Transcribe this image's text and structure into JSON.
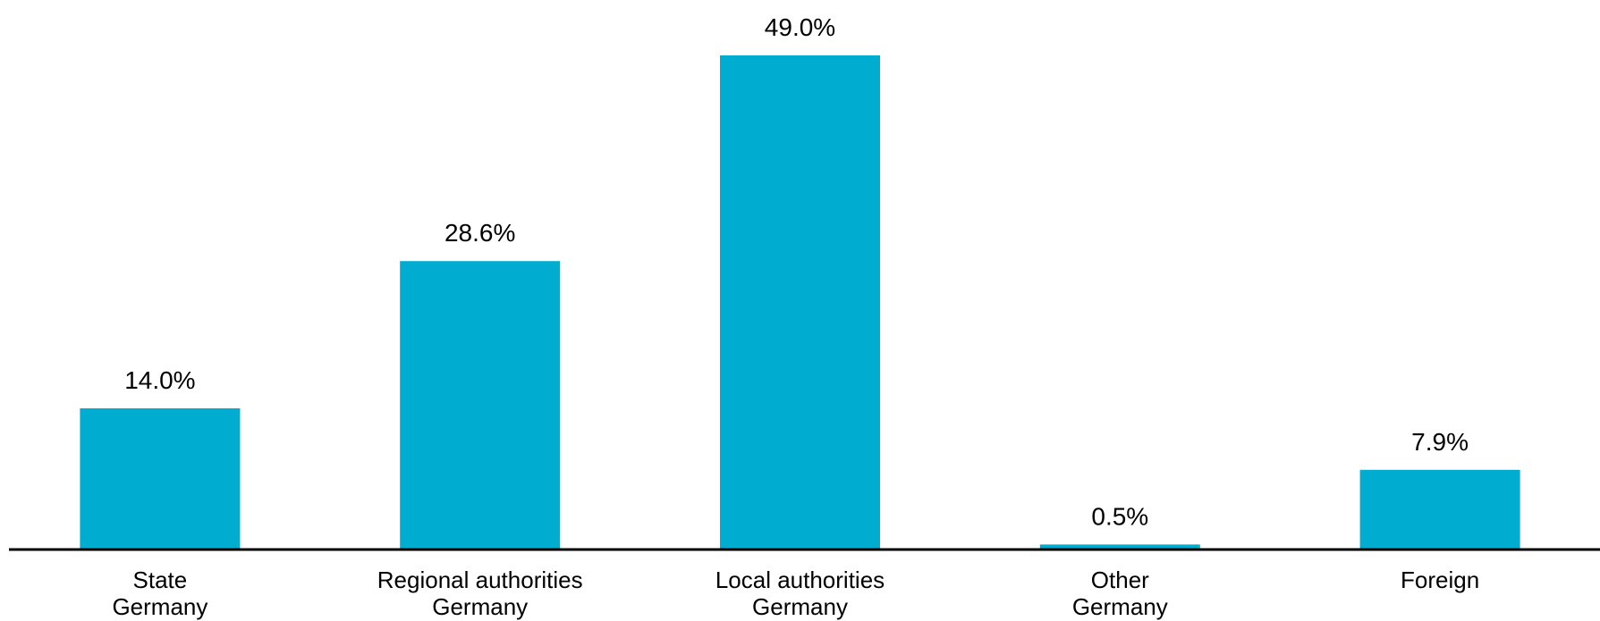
{
  "chart_data": {
    "type": "bar",
    "categories": [
      [
        "State",
        "Germany"
      ],
      [
        "Regional authorities",
        "Germany"
      ],
      [
        "Local authorities",
        "Germany"
      ],
      [
        "Other",
        "Germany"
      ],
      [
        "Foreign"
      ]
    ],
    "values": [
      14.0,
      28.6,
      49.0,
      0.5,
      7.9
    ],
    "data_labels": [
      "14.0%",
      "28.6%",
      "49.0%",
      "0.5%",
      "7.9%"
    ],
    "value_unit": "%",
    "title": "",
    "xlabel": "",
    "ylabel": "",
    "ylim": [
      0,
      49.0
    ],
    "y_axis_visible": false,
    "grid": false,
    "legend": "none",
    "colors": {
      "bar": "#00ADD0",
      "axis": "#000000",
      "text": "#000000"
    }
  }
}
